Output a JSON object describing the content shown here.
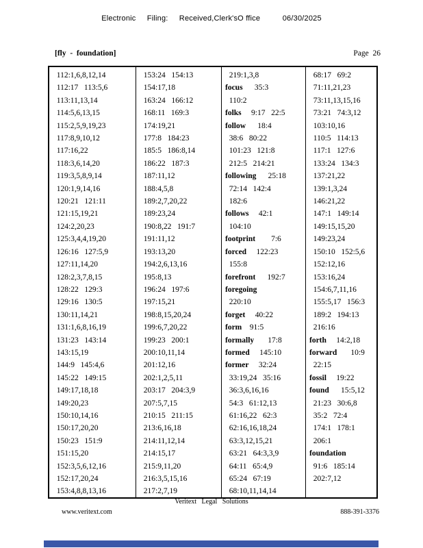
{
  "header": {
    "filing_line": "Electronic     Filing:     Received,Clerk'sO ffice          06/30/2025"
  },
  "index_header": {
    "range_label": "[fly  -  foundation]",
    "page_label": "Page  26"
  },
  "table": {
    "columns": [
      {
        "lines": [
          {
            "t": "  112:1,6,8,12,14"
          },
          {
            "t": "  112:17   113:5,6"
          },
          {
            "t": "  113:11,13,14"
          },
          {
            "t": "  114:5,6,13,15"
          },
          {
            "t": "  115:2,5,9,19,23"
          },
          {
            "t": "  117:8,9,10,12"
          },
          {
            "t": "  117:16,22"
          },
          {
            "t": "  118:3,6,14,20"
          },
          {
            "t": "  119:3,5,8,9,14"
          },
          {
            "t": "  120:1,9,14,16"
          },
          {
            "t": "  120:21   121:11"
          },
          {
            "t": "  121:15,19,21"
          },
          {
            "t": "  124:2,20,23"
          },
          {
            "t": "  125:3,4,4,19,20"
          },
          {
            "t": "  126:16   127:5,9"
          },
          {
            "t": "  127:11,14,20"
          },
          {
            "t": "  128:2,3,7,8,15"
          },
          {
            "t": "  128:22   129:3"
          },
          {
            "t": "  129:16   130:5"
          },
          {
            "t": "  130:11,14,21"
          },
          {
            "t": "  131:1,6,8,16,19"
          },
          {
            "t": "  131:23   143:14"
          },
          {
            "t": "  143:15,19"
          },
          {
            "t": "  144:9   145:4,6"
          },
          {
            "t": "  145:22   149:15"
          },
          {
            "t": "  149:17,18,18"
          },
          {
            "t": "  149:20,23"
          },
          {
            "t": "  150:10,14,16"
          },
          {
            "t": "  150:17,20,20"
          },
          {
            "t": "  150:23   151:9"
          },
          {
            "t": "  151:15,20"
          },
          {
            "t": "  152:3,5,6,12,16"
          },
          {
            "t": "  152:17,20,24"
          },
          {
            "t": "  153:4,8,8,13,16"
          }
        ]
      },
      {
        "lines": [
          {
            "t": "  153:24   154:13"
          },
          {
            "t": "  154:17,18"
          },
          {
            "t": "  163:24   166:12"
          },
          {
            "t": "  168:11   169:3"
          },
          {
            "t": "  174:19,21"
          },
          {
            "t": "  177:8   184:23"
          },
          {
            "t": "  185:5   186:8,14"
          },
          {
            "t": "  186:22   187:3"
          },
          {
            "t": "  187:11,12"
          },
          {
            "t": "  188:4,5,8"
          },
          {
            "t": "  189:2,7,20,22"
          },
          {
            "t": "  189:23,24"
          },
          {
            "t": "  190:8,22   191:7"
          },
          {
            "t": "  191:11,12"
          },
          {
            "t": "  193:13,20"
          },
          {
            "t": "  194:2,6,13,16"
          },
          {
            "t": "  195:8,13"
          },
          {
            "t": "  196:24   197:6"
          },
          {
            "t": "  197:15,21"
          },
          {
            "t": "  198:8,15,20,24"
          },
          {
            "t": "  199:6,7,20,22"
          },
          {
            "t": "  199:23   200:1"
          },
          {
            "t": "  200:10,11,14"
          },
          {
            "t": "  201:12,16"
          },
          {
            "t": "  202:1,2,5,11"
          },
          {
            "t": "  203:17   204:3,9"
          },
          {
            "t": "  207:5,7,15"
          },
          {
            "t": "  210:15   211:15"
          },
          {
            "t": "  213:6,16,18"
          },
          {
            "t": "  214:11,12,14"
          },
          {
            "t": "  214:15,17"
          },
          {
            "t": "  215:9,11,20"
          },
          {
            "t": "  216:3,5,15,16"
          },
          {
            "t": "  217:2,7,19"
          }
        ]
      },
      {
        "lines": [
          {
            "t": "  219:1,3,8"
          },
          {
            "b": "focus",
            "t": "      35:3"
          },
          {
            "t": "  110:2"
          },
          {
            "b": "folks",
            "t": "     9:17   22:5"
          },
          {
            "b": "follow",
            "t": "      18:4"
          },
          {
            "t": "  38:6   80:22"
          },
          {
            "t": "  101:23   121:8"
          },
          {
            "t": "  212:5   214:21"
          },
          {
            "b": "following",
            "t": "      25:18"
          },
          {
            "t": "  72:14   142:4"
          },
          {
            "t": "  182:6"
          },
          {
            "b": "follows",
            "t": "     42:1"
          },
          {
            "t": "  104:10"
          },
          {
            "b": "footprint",
            "t": "        7:6"
          },
          {
            "b": "forced",
            "t": "     122:23"
          },
          {
            "t": "  155:8"
          },
          {
            "b": "forefront",
            "t": "      192:7"
          },
          {
            "b": "foregoing",
            "t": ""
          },
          {
            "t": "  220:10"
          },
          {
            "b": "forget",
            "t": "     40:22"
          },
          {
            "b": "form",
            "t": "    91:5"
          },
          {
            "b": "formally",
            "t": "       17:8"
          },
          {
            "b": "formed",
            "t": "     145:10"
          },
          {
            "b": "former",
            "t": "     32:24"
          },
          {
            "t": "  33:19,24   35:16"
          },
          {
            "t": "  36:3,6,16,16"
          },
          {
            "t": "  54:3   61:12,13"
          },
          {
            "t": "  61:16,22   62:3"
          },
          {
            "t": "  62:16,16,18,24"
          },
          {
            "t": "  63:3,12,15,21"
          },
          {
            "t": "  63:21   64:3,3,9"
          },
          {
            "t": "  64:11   65:4,9"
          },
          {
            "t": "  65:24   67:19"
          },
          {
            "t": "  68:10,11,14,14"
          }
        ]
      },
      {
        "lines": [
          {
            "t": "  68:17   69:2"
          },
          {
            "t": "  71:11,21,23"
          },
          {
            "t": "  73:11,13,15,16"
          },
          {
            "t": "  73:21   74:3,12"
          },
          {
            "t": "  103:10,16"
          },
          {
            "t": "  110:5   114:13"
          },
          {
            "t": "  117:1   127:6"
          },
          {
            "t": "  133:24   134:3"
          },
          {
            "t": "  137:21,22"
          },
          {
            "t": "  139:1,3,24"
          },
          {
            "t": "  146:21,22"
          },
          {
            "t": "  147:1   149:14"
          },
          {
            "t": "  149:15,15,20"
          },
          {
            "t": "  149:23,24"
          },
          {
            "t": "  150:10   152:5,6"
          },
          {
            "t": "  152:12,16"
          },
          {
            "t": "  153:16,24"
          },
          {
            "t": "  154:6,7,11,16"
          },
          {
            "t": "  155:5,17   156:3"
          },
          {
            "t": "  189:2   194:13"
          },
          {
            "t": "  216:16"
          },
          {
            "b": "forth",
            "t": "     14:2,18"
          },
          {
            "b": "forward",
            "t": "       10:9"
          },
          {
            "t": "  22:15"
          },
          {
            "b": "fossil",
            "t": "     19:22"
          },
          {
            "b": "found",
            "t": "      15:5,12"
          },
          {
            "t": "  21:23   30:6,8"
          },
          {
            "t": "  35:2   72:4"
          },
          {
            "t": "  174:1   178:1"
          },
          {
            "t": "  206:1"
          },
          {
            "b": "foundation",
            "t": ""
          },
          {
            "t": "  91:6   185:14"
          },
          {
            "t": "  202:7,12"
          }
        ]
      }
    ]
  },
  "footer": {
    "brand": "Veritext   Legal   Solutions",
    "website": "www.veritext.com",
    "phone": "888-391-3376"
  },
  "colors": {
    "bottom_bar_style": "background:#3a57a8"
  }
}
